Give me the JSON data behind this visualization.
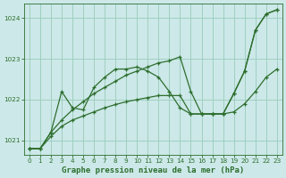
{
  "title": "Graphe pression niveau de la mer (hPa)",
  "bg_color": "#cce8e8",
  "grid_color": "#99ccbb",
  "line_color": "#2d6e2d",
  "ylim": [
    1020.65,
    1024.35
  ],
  "yticks": [
    1021,
    1022,
    1023,
    1024
  ],
  "xlim": [
    -0.5,
    23.5
  ],
  "xticks": [
    0,
    1,
    2,
    3,
    4,
    5,
    6,
    7,
    8,
    9,
    10,
    11,
    12,
    13,
    14,
    15,
    16,
    17,
    18,
    19,
    20,
    21,
    22,
    23
  ],
  "y_main": [
    1020.8,
    1020.8,
    1021.2,
    1022.2,
    1021.8,
    1021.75,
    1022.3,
    1022.55,
    1022.75,
    1022.75,
    1022.8,
    1022.7,
    1022.55,
    1022.2,
    1021.8,
    1021.65,
    1021.65,
    1021.65,
    1021.65,
    1022.15,
    1022.7,
    1023.7,
    1024.1,
    1024.2
  ],
  "y_upper": [
    1020.8,
    1020.8,
    1021.2,
    1021.5,
    1021.75,
    1021.95,
    1022.15,
    1022.3,
    1022.45,
    1022.6,
    1022.7,
    1022.8,
    1022.9,
    1022.95,
    1023.05,
    1022.2,
    1021.65,
    1021.65,
    1021.65,
    1022.15,
    1022.7,
    1023.7,
    1024.1,
    1024.2
  ],
  "y_lower": [
    1020.8,
    1020.8,
    1021.1,
    1021.35,
    1021.5,
    1021.6,
    1021.7,
    1021.8,
    1021.88,
    1021.95,
    1022.0,
    1022.05,
    1022.1,
    1022.1,
    1022.1,
    1021.65,
    1021.65,
    1021.65,
    1021.65,
    1021.7,
    1021.9,
    1022.2,
    1022.55,
    1022.75
  ],
  "title_fontsize": 6.5,
  "tick_fontsize": 5.2,
  "lw": 0.9,
  "ms": 3.5
}
